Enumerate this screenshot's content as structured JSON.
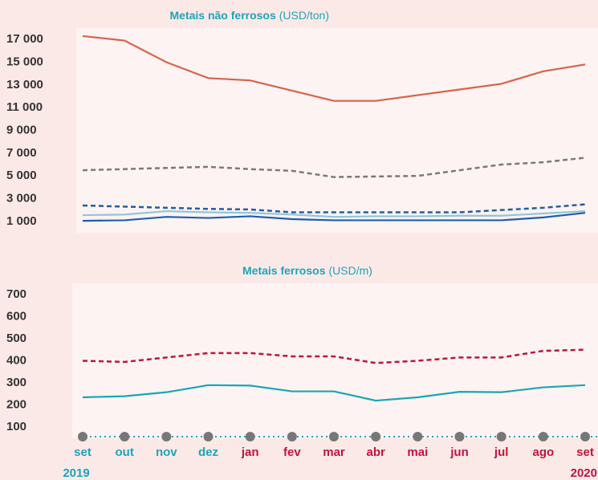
{
  "chart_data": [
    {
      "type": "line",
      "title": "Metais não ferrosos",
      "unit": "(USD/ton)",
      "ylim": [
        0,
        18000
      ],
      "yticks": [
        {
          "value": 1000,
          "label": "1 000"
        },
        {
          "value": 3000,
          "label": "3 000"
        },
        {
          "value": 5000,
          "label": "5 000"
        },
        {
          "value": 7000,
          "label": "7 000"
        },
        {
          "value": 9000,
          "label": "9 000"
        },
        {
          "value": 11000,
          "label": "11 000"
        },
        {
          "value": 13000,
          "label": "13 000"
        },
        {
          "value": 15000,
          "label": "15 000"
        },
        {
          "value": 17000,
          "label": "17 000"
        }
      ],
      "series": [
        {
          "color": "#d9624a",
          "dash": false,
          "values": [
            17300,
            16900,
            15000,
            13600,
            13400,
            12500,
            11600,
            11600,
            12100,
            12600,
            13100,
            14200,
            14800
          ]
        },
        {
          "color": "#7a7a7a",
          "dash": true,
          "values": [
            5500,
            5600,
            5700,
            5800,
            5600,
            5450,
            4900,
            4950,
            5000,
            5500,
            6000,
            6200,
            6600
          ]
        },
        {
          "color": "#1f5fa8",
          "dash": true,
          "values": [
            2400,
            2300,
            2200,
            2100,
            2050,
            1800,
            1800,
            1800,
            1800,
            1800,
            2000,
            2200,
            2500
          ]
        },
        {
          "color": "#8ec5dc",
          "dash": false,
          "values": [
            1550,
            1600,
            1900,
            1800,
            1750,
            1600,
            1400,
            1450,
            1450,
            1500,
            1500,
            1700,
            1900
          ]
        },
        {
          "color": "#1f5fa8",
          "dash": false,
          "values": [
            1050,
            1100,
            1400,
            1300,
            1450,
            1200,
            1100,
            1100,
            1100,
            1100,
            1100,
            1350,
            1750
          ]
        }
      ]
    },
    {
      "type": "line",
      "title": "Metais ferrosos",
      "unit": "(USD/m)",
      "ylim": [
        50,
        750
      ],
      "yticks": [
        100,
        200,
        300,
        400,
        500,
        600,
        700
      ],
      "categories": [
        "set",
        "out",
        "nov",
        "dez",
        "jan",
        "fev",
        "mar",
        "abr",
        "mai",
        "jun",
        "jul",
        "ago",
        "set"
      ],
      "category_colors": [
        "#1aa6b7",
        "#1aa6b7",
        "#1aa6b7",
        "#1aa6b7",
        "#c0143c",
        "#c0143c",
        "#c0143c",
        "#c0143c",
        "#c0143c",
        "#c0143c",
        "#c0143c",
        "#c0143c",
        "#c0143c"
      ],
      "years": [
        "2019",
        "2020"
      ],
      "year_colors": [
        "#1aa6b7",
        "#c0143c"
      ],
      "series": [
        {
          "color": "#c0143c",
          "dash": true,
          "values": [
            400,
            395,
            415,
            435,
            435,
            420,
            420,
            390,
            400,
            415,
            415,
            445,
            450
          ]
        },
        {
          "color": "#1aa6b7",
          "dash": false,
          "values": [
            235,
            240,
            258,
            290,
            288,
            262,
            262,
            220,
            235,
            260,
            258,
            280,
            290
          ]
        }
      ]
    }
  ]
}
